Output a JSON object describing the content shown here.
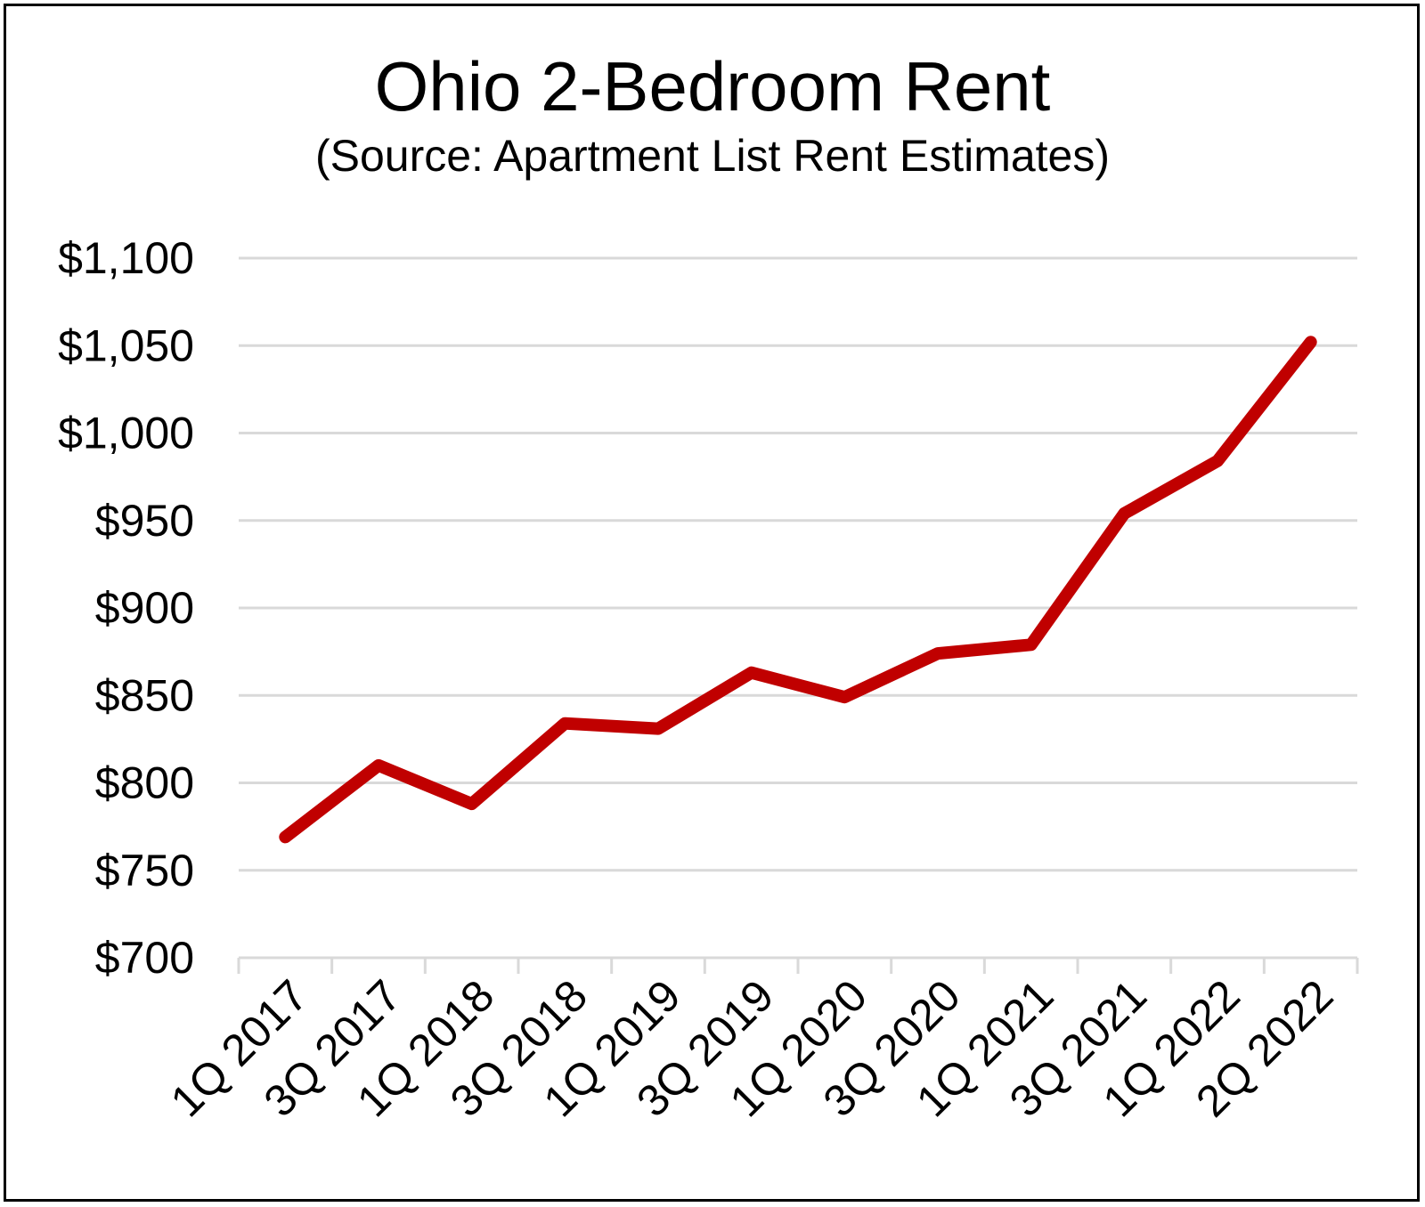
{
  "chart_data": {
    "type": "line",
    "title": "Ohio 2-Bedroom Rent",
    "subtitle": "(Source: Apartment List Rent Estimates)",
    "xlabel": "",
    "ylabel": "",
    "ylim": [
      700,
      1100
    ],
    "ytick_values": [
      700,
      750,
      800,
      850,
      900,
      950,
      1000,
      1050,
      1100
    ],
    "ytick_labels": [
      "$700",
      "$750",
      "$800",
      "$850",
      "$900",
      "$950",
      "$1,000",
      "$1,050",
      "$1,100"
    ],
    "categories": [
      "1Q 2017",
      "3Q 2017",
      "1Q 2018",
      "3Q 2018",
      "1Q 2019",
      "3Q 2019",
      "1Q 2020",
      "3Q 2020",
      "1Q 2021",
      "3Q 2021",
      "1Q 2022",
      "2Q 2022"
    ],
    "values": [
      769,
      810,
      788,
      834,
      831,
      863,
      849,
      874,
      879,
      954,
      984,
      1052
    ],
    "line_color": "#c00000",
    "grid_color": "#d9d9d9",
    "grid": true,
    "legend": "none"
  }
}
